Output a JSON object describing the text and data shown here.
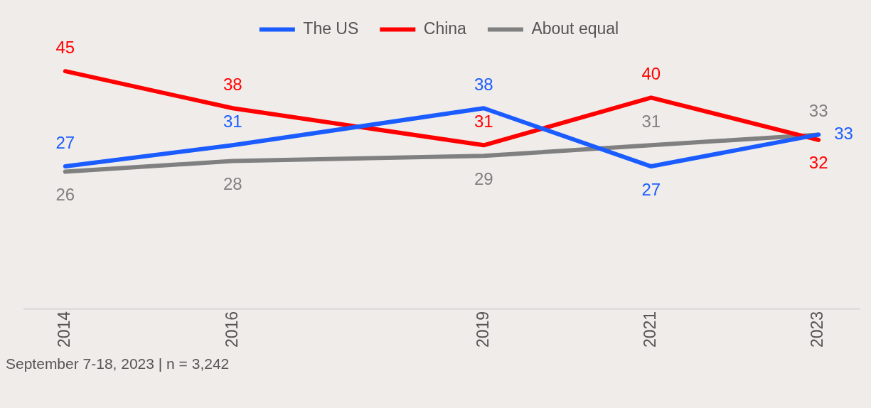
{
  "chart_data": {
    "type": "line",
    "x": [
      2014,
      2016,
      2019,
      2021,
      2023
    ],
    "xlim": [
      2013.5,
      2023.5
    ],
    "xticks": [
      2014,
      2016,
      2019,
      2021,
      2023
    ],
    "relative": false,
    "tick_labels": "x",
    "grid": false,
    "legend": "top",
    "data_labels": true,
    "marker": "none",
    "series": [
      {
        "name": "The US",
        "color": "#1a5cff",
        "values": [
          27,
          31,
          38,
          27,
          33
        ]
      },
      {
        "name": "China",
        "color": "#ff0000",
        "values": [
          45,
          38,
          31,
          40,
          32
        ]
      },
      {
        "name": "About equal",
        "color": "#808080",
        "values": [
          26,
          28,
          29,
          31,
          33
        ]
      }
    ],
    "annotations": [
      "September 7-18, 2023 | n = 3,242"
    ]
  }
}
